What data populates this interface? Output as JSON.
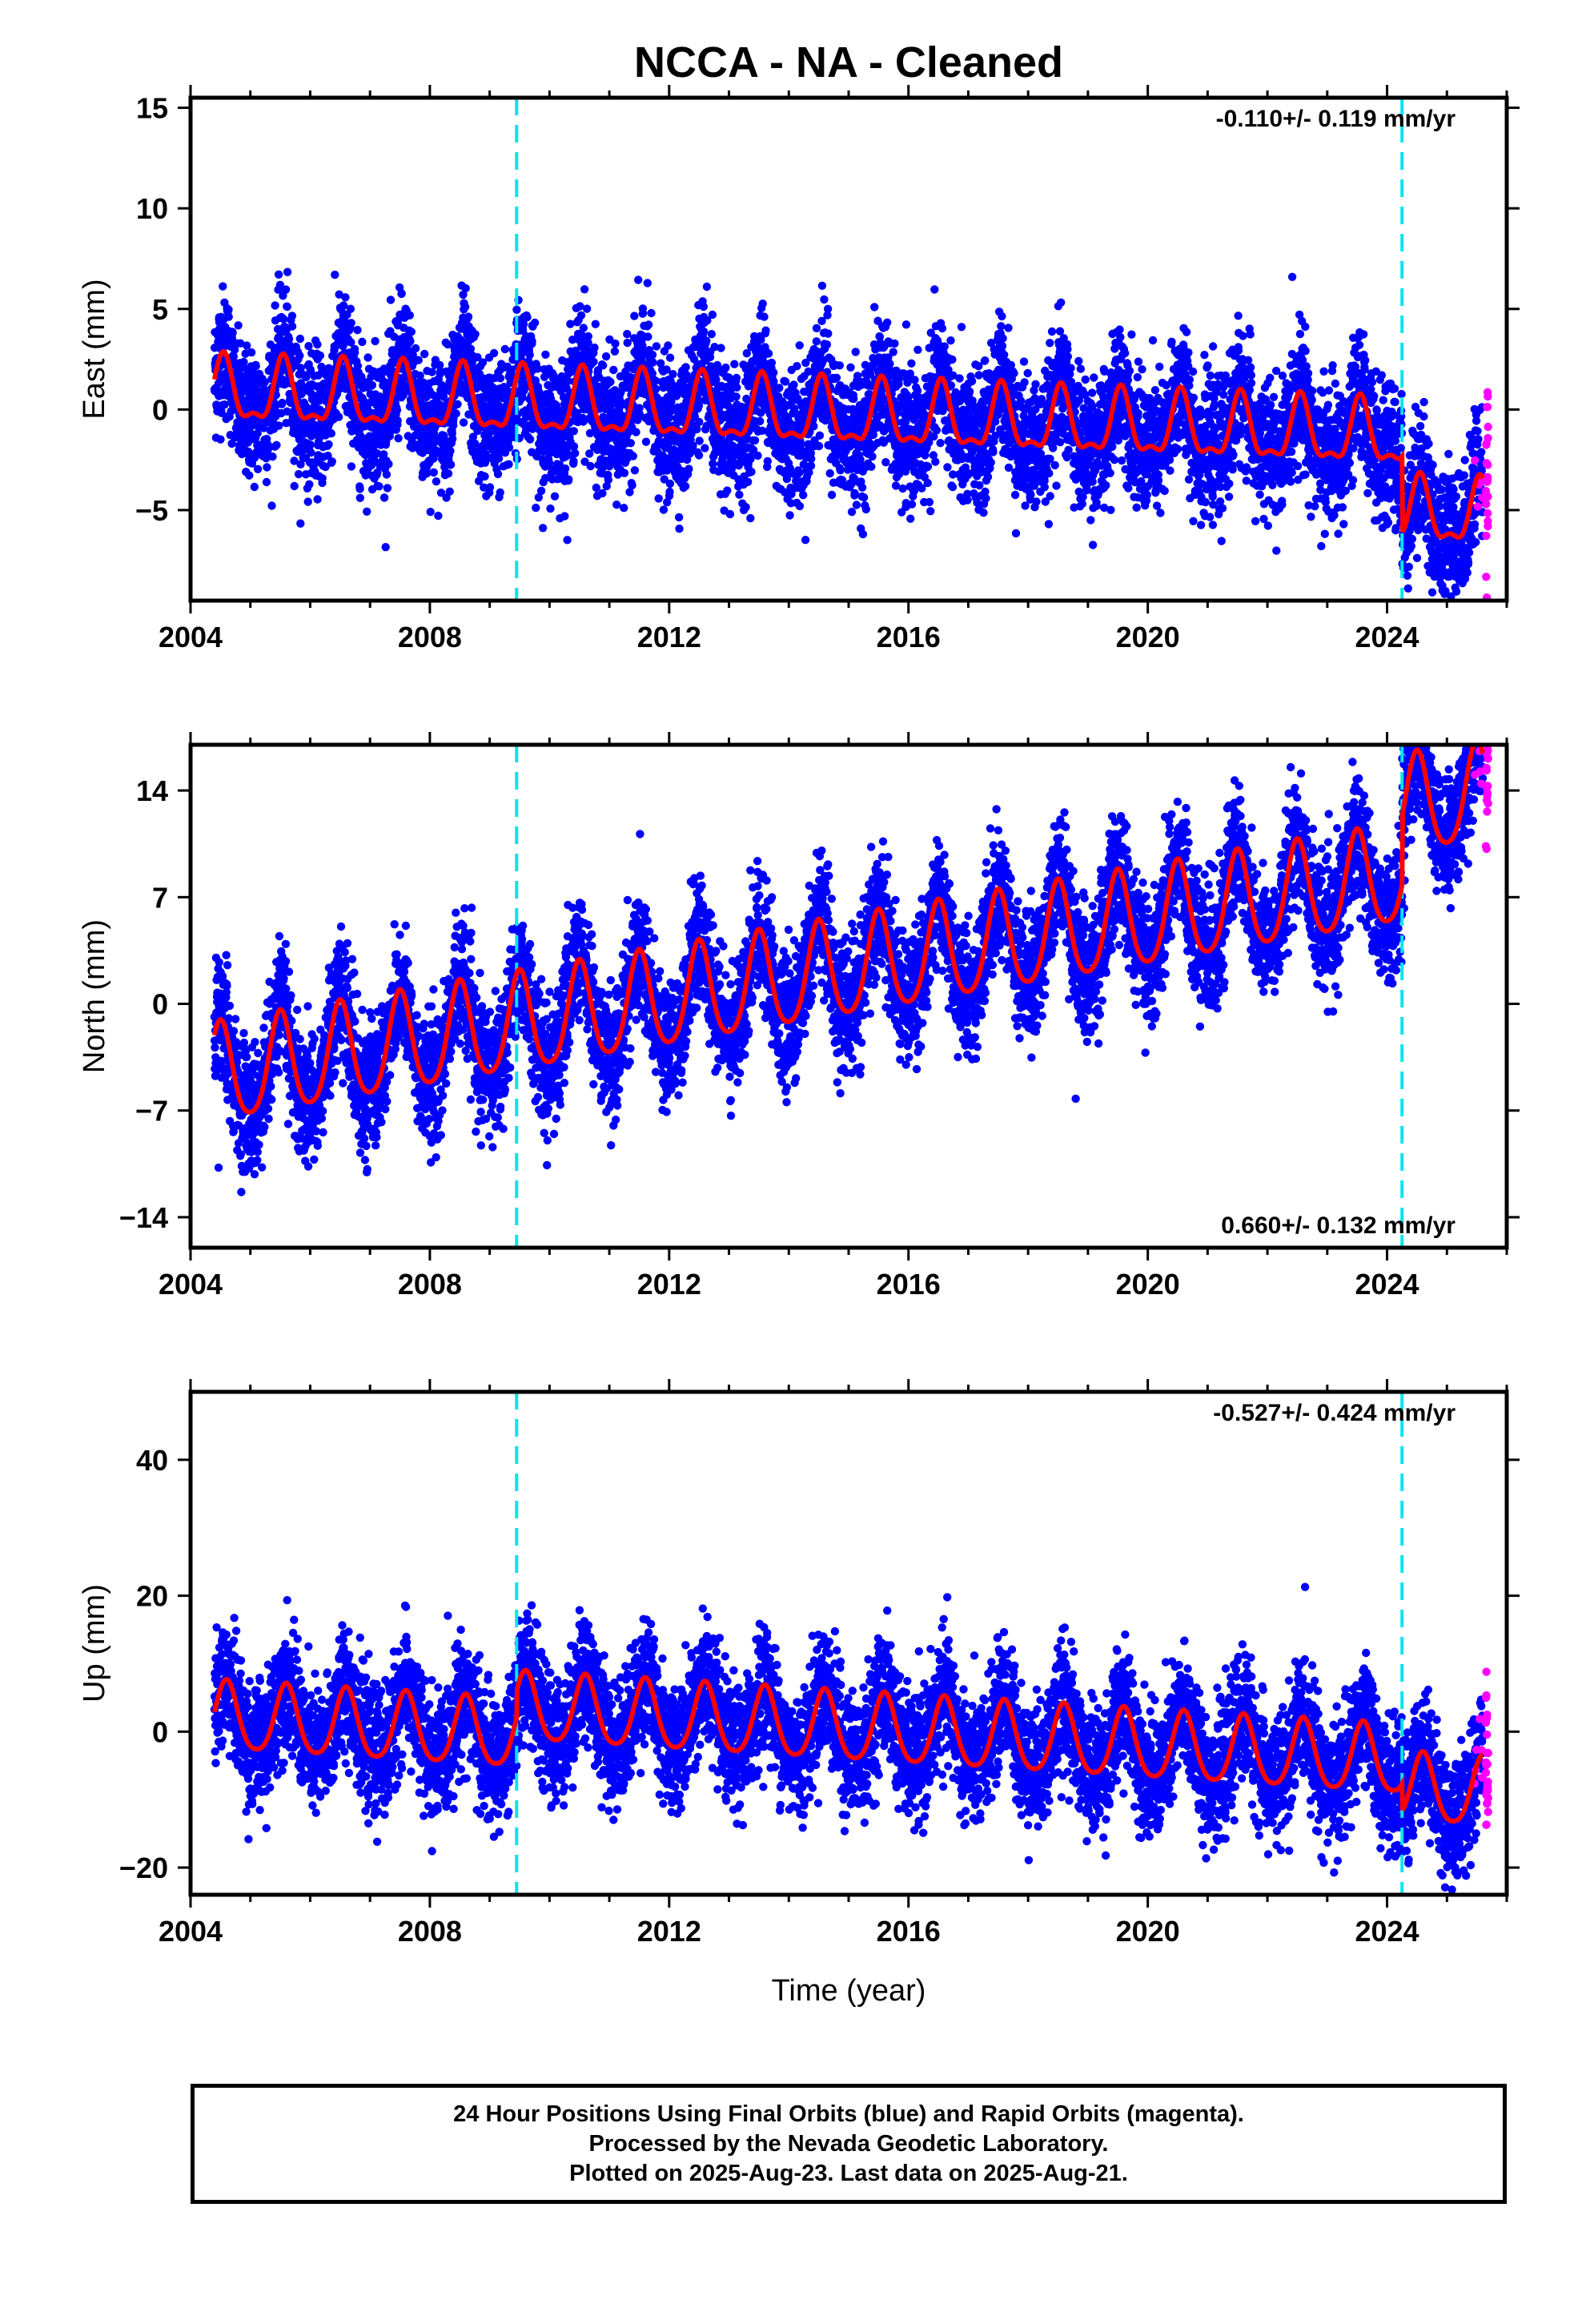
{
  "title": "NCCA  - NA - Cleaned",
  "xlabel": "Time (year)",
  "footer": {
    "line1": "24 Hour Positions Using Final Orbits (blue) and Rapid Orbits (magenta).",
    "line2": "Processed by the Nevada Geodetic Laboratory.",
    "line3": "Plotted on 2025-Aug-23. Last data on 2025-Aug-21."
  },
  "colors": {
    "final_orbits": "#0000ff",
    "rapid_orbits": "#ff00ff",
    "model_fit": "#ff0000",
    "equipment_change": "#00e5ee"
  },
  "chart_data": [
    {
      "type": "scatter",
      "ylabel": "East (mm)",
      "rate_label": "-0.110+/- 0.119 mm/yr",
      "rate_position": "top-right",
      "xlim": [
        2004.0,
        2026.0
      ],
      "ylim": [
        -9.5,
        15.5
      ],
      "x_ticks": [
        2004,
        2008,
        2012,
        2016,
        2020,
        2024
      ],
      "y_ticks": [
        -5,
        0,
        5,
        10,
        15
      ],
      "y_tick_labels": [
        "−5",
        "0",
        "5",
        "10",
        "15"
      ],
      "grid": false,
      "equipment_changes": [
        2009.45,
        2024.25
      ],
      "fit": {
        "start": 2004.4,
        "end": 2025.6,
        "y0": 0.8,
        "slope": -0.11,
        "annual_amp": 1.5,
        "semi_amp": 0.6,
        "phase": 0.55,
        "steps": [
          [
            2024.25,
            -3.8
          ]
        ],
        "scatter": 1.6,
        "rapid_from": 2025.45
      },
      "series": [
        {
          "name": "Final Orbits",
          "color": "#0000ff"
        },
        {
          "name": "Rapid Orbits",
          "color": "#ff00ff"
        },
        {
          "name": "Model",
          "color": "#ff0000"
        }
      ]
    },
    {
      "type": "scatter",
      "ylabel": "North (mm)",
      "rate_label": "0.660+/- 0.132 mm/yr",
      "rate_position": "bottom-right",
      "xlim": [
        2004.0,
        2026.0
      ],
      "ylim": [
        -16,
        17
      ],
      "x_ticks": [
        2004,
        2008,
        2012,
        2016,
        2020,
        2024
      ],
      "y_ticks": [
        -14,
        -7,
        0,
        7,
        14
      ],
      "y_tick_labels": [
        "−14",
        "−7",
        "0",
        "7",
        "14"
      ],
      "grid": false,
      "equipment_changes": [
        2009.45,
        2024.25
      ],
      "fit": {
        "start": 2004.4,
        "end": 2025.6,
        "y0": -4.8,
        "slope": 0.66,
        "annual_amp": 3.2,
        "semi_amp": 0.5,
        "phase": 0.5,
        "steps": [
          [
            2024.25,
            4.5
          ]
        ],
        "scatter": 2.0,
        "rapid_from": 2025.45
      },
      "series": [
        {
          "name": "Final Orbits",
          "color": "#0000ff"
        },
        {
          "name": "Rapid Orbits",
          "color": "#ff00ff"
        },
        {
          "name": "Model",
          "color": "#ff0000"
        }
      ]
    },
    {
      "type": "scatter",
      "ylabel": "Up (mm)",
      "rate_label": "-0.527+/- 0.424 mm/yr",
      "rate_position": "top-right",
      "xlim": [
        2004.0,
        2026.0
      ],
      "ylim": [
        -24,
        50
      ],
      "x_ticks": [
        2004,
        2008,
        2012,
        2016,
        2020,
        2024
      ],
      "y_ticks": [
        -20,
        0,
        20,
        40
      ],
      "y_tick_labels": [
        "−20",
        "0",
        "20",
        "40"
      ],
      "grid": false,
      "equipment_changes": [
        2009.45,
        2024.25
      ],
      "fit": {
        "start": 2004.4,
        "end": 2025.6,
        "y0": 2.0,
        "slope": -0.53,
        "annual_amp": 5.0,
        "semi_amp": 0.8,
        "phase": 0.6,
        "steps": [
          [
            2009.45,
            4.0
          ],
          [
            2024.25,
            -4.0
          ]
        ],
        "scatter": 4.5,
        "rapid_from": 2025.45
      },
      "series": [
        {
          "name": "Final Orbits",
          "color": "#0000ff"
        },
        {
          "name": "Rapid Orbits",
          "color": "#ff00ff"
        },
        {
          "name": "Model",
          "color": "#ff0000"
        }
      ]
    }
  ]
}
